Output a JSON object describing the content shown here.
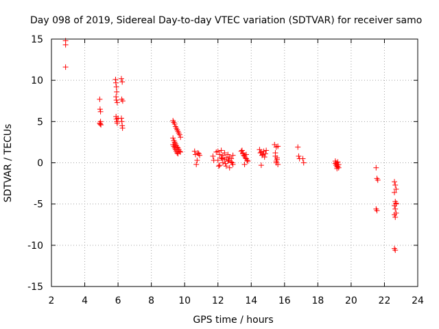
{
  "chart_data": {
    "type": "scatter",
    "title": "Day 098 of 2019, Sidereal Day-to-day VTEC variation (SDTVAR) for receiver samo",
    "xlabel": "GPS time / hours",
    "ylabel": "SDTVAR / TECUs",
    "xlim": [
      2,
      24
    ],
    "ylim": [
      -15,
      15
    ],
    "xticks": [
      "2",
      "4",
      "6",
      "8",
      "10",
      "12",
      "14",
      "16",
      "18",
      "20",
      "22",
      "24"
    ],
    "yticks": [
      "15",
      "10",
      "5",
      "0",
      "-5",
      "-10",
      "-15"
    ],
    "grid": true,
    "marker": "+",
    "color": "#ff0000",
    "series": [
      {
        "name": "SDTVAR",
        "x": [
          2.85,
          2.85,
          2.85,
          4.9,
          4.92,
          4.95,
          4.95,
          4.9,
          4.93,
          4.97,
          5.85,
          5.87,
          5.9,
          5.92,
          5.88,
          5.9,
          5.95,
          5.88,
          5.9,
          5.93,
          5.95,
          6.0,
          6.2,
          6.25,
          6.22,
          6.28,
          6.2,
          6.23,
          6.25,
          6.27,
          9.3,
          9.35,
          9.4,
          9.45,
          9.5,
          9.55,
          9.6,
          9.65,
          9.7,
          9.75,
          9.3,
          9.35,
          9.4,
          9.45,
          9.5,
          9.55,
          9.6,
          9.65,
          9.7,
          9.75,
          9.3,
          9.35,
          9.4,
          9.45,
          9.5,
          9.55,
          9.6,
          10.6,
          10.65,
          10.7,
          10.8,
          10.9,
          10.75,
          10.85,
          11.7,
          11.75,
          11.9,
          12.0,
          12.1,
          12.2,
          12.3,
          12.4,
          12.5,
          12.6,
          12.7,
          12.8,
          12.9,
          12.0,
          12.1,
          12.2,
          12.3,
          12.4,
          12.5,
          12.6,
          12.7,
          12.8,
          12.9,
          12.05,
          12.25,
          12.45,
          12.65,
          12.85,
          13.4,
          13.5,
          13.6,
          13.7,
          13.8,
          13.45,
          13.55,
          13.65,
          13.75,
          13.5,
          13.6,
          13.7,
          14.5,
          14.6,
          14.7,
          14.8,
          14.9,
          14.55,
          14.65,
          14.75,
          14.85,
          14.6,
          15.4,
          15.5,
          15.6,
          15.45,
          15.55,
          15.5,
          15.6,
          15.45,
          15.55,
          15.5,
          16.8,
          16.85,
          16.9,
          17.1,
          17.15,
          19.05,
          19.1,
          19.15,
          19.2,
          19.25,
          19.1,
          19.15,
          19.2,
          19.05,
          19.25,
          19.15,
          21.5,
          21.55,
          21.6,
          21.5,
          21.55,
          22.6,
          22.65,
          22.7,
          22.6,
          22.65,
          22.7,
          22.6,
          22.65,
          22.7,
          22.6,
          22.65,
          22.7,
          22.6,
          22.65
        ],
        "y": [
          14.8,
          14.3,
          11.6,
          7.7,
          6.5,
          6.2,
          5.0,
          4.8,
          4.7,
          4.6,
          10.1,
          9.7,
          9.2,
          8.6,
          8.0,
          7.6,
          7.3,
          5.6,
          5.3,
          5.0,
          4.8,
          5.4,
          10.2,
          9.8,
          7.7,
          7.5,
          5.4,
          5.0,
          4.5,
          4.2,
          5.1,
          4.9,
          4.7,
          4.4,
          4.2,
          4.0,
          3.8,
          3.6,
          3.4,
          3.1,
          3.0,
          2.7,
          2.5,
          2.3,
          2.1,
          1.9,
          1.8,
          1.6,
          1.4,
          1.3,
          2.2,
          2.0,
          1.8,
          1.6,
          1.4,
          1.2,
          1.1,
          1.4,
          1.0,
          -0.2,
          1.2,
          0.9,
          0.3,
          1.1,
          0.8,
          0.3,
          1.3,
          1.4,
          1.0,
          1.5,
          0.9,
          1.2,
          0.6,
          1.0,
          0.7,
          0.5,
          0.9,
          0.3,
          -0.3,
          0.6,
          0.0,
          0.4,
          -0.4,
          0.2,
          -0.6,
          0.1,
          -0.2,
          -0.4,
          0.5,
          -0.1,
          0.3,
          0.0,
          1.4,
          1.1,
          0.8,
          0.5,
          0.2,
          1.5,
          0.9,
          0.6,
          0.3,
          1.2,
          -0.2,
          1.0,
          1.6,
          1.3,
          1.0,
          0.7,
          1.5,
          1.2,
          0.9,
          1.4,
          1.1,
          -0.3,
          2.2,
          1.9,
          2.0,
          0.8,
          0.4,
          0.0,
          -0.2,
          1.2,
          0.6,
          0.2,
          1.9,
          0.8,
          0.5,
          0.5,
          0.0,
          0.2,
          0.0,
          -0.2,
          -0.4,
          -0.6,
          -0.3,
          -0.5,
          0.1,
          -0.1,
          -0.2,
          -0.7,
          -0.6,
          -1.9,
          -2.1,
          -5.6,
          -5.8,
          -2.3,
          -2.7,
          -3.2,
          -3.6,
          -4.7,
          -4.9,
          -5.2,
          -5.6,
          -6.1,
          -6.3,
          -6.6,
          -5.0,
          -10.4,
          -10.6
        ]
      }
    ]
  }
}
